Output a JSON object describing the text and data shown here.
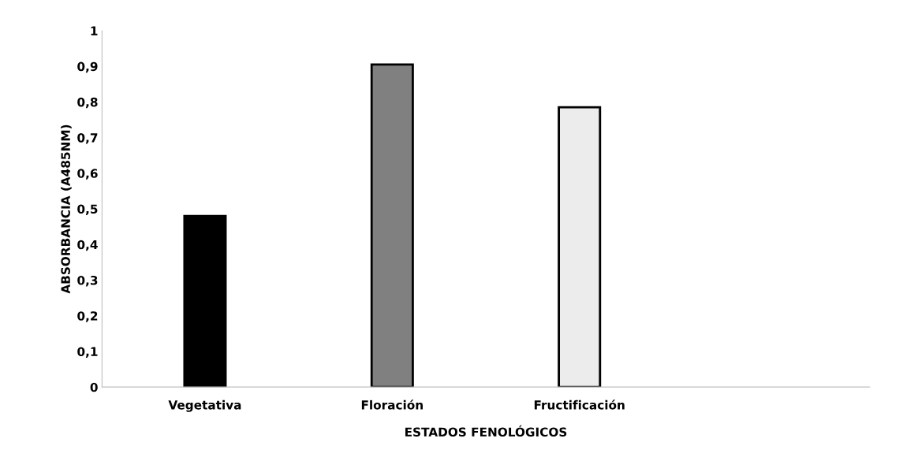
{
  "chart_data": {
    "type": "bar",
    "xlabel": "ESTADOS FENOLÓGICOS",
    "ylabel": "ABSORBANCIA (A485NM)",
    "categories": [
      "Vegetativa",
      "Floración",
      "Fructificación",
      null
    ],
    "values": [
      0.48,
      0.905,
      0.785,
      null
    ],
    "colors": [
      "#000000",
      "#808080",
      "#ececec",
      "#000000"
    ],
    "ylim": [
      0,
      1
    ],
    "yticks": [
      0,
      {
        "value": 0.1,
        "label": "0,1"
      },
      {
        "value": 0.2,
        "label": "0,2"
      },
      {
        "value": 0.3,
        "label": "0,3"
      },
      {
        "value": 0.4,
        "label": "0,4"
      },
      {
        "value": 0.5,
        "label": "0,5"
      },
      {
        "value": 0.6,
        "label": "0,6"
      },
      {
        "value": 0.7,
        "label": "0,7"
      },
      {
        "value": 0.8,
        "label": "0,8"
      },
      {
        "value": 0.9,
        "label": "0,9"
      },
      1
    ],
    "grid": false,
    "legend": false
  }
}
